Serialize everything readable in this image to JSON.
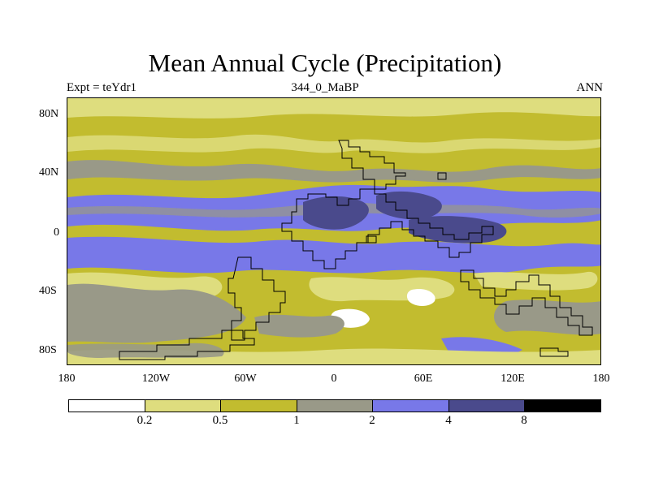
{
  "title": "Mean Annual Cycle (Precipitation)",
  "subtitle_left": "Expt = teYdr1",
  "subtitle_center": "344_0_MaBP",
  "subtitle_right": "ANN",
  "y_ticks": [
    "80N",
    "40N",
    "0",
    "40S",
    "80S"
  ],
  "x_ticks": [
    "180",
    "120W",
    "60W",
    "0",
    "60E",
    "120E",
    "180"
  ],
  "colorbar": {
    "levels": [
      "0.2",
      "0.5",
      "1",
      "2",
      "4",
      "8"
    ],
    "colors": [
      "#ffffff",
      "#dedd7e",
      "#c2bc2f",
      "#999988",
      "#7878e8",
      "#4a4a8c",
      "#000000"
    ]
  },
  "map_data": {
    "type": "filled-contour",
    "variable": "Precipitation",
    "lon_range": [
      -180,
      180
    ],
    "lat_range": [
      -90,
      90
    ]
  }
}
